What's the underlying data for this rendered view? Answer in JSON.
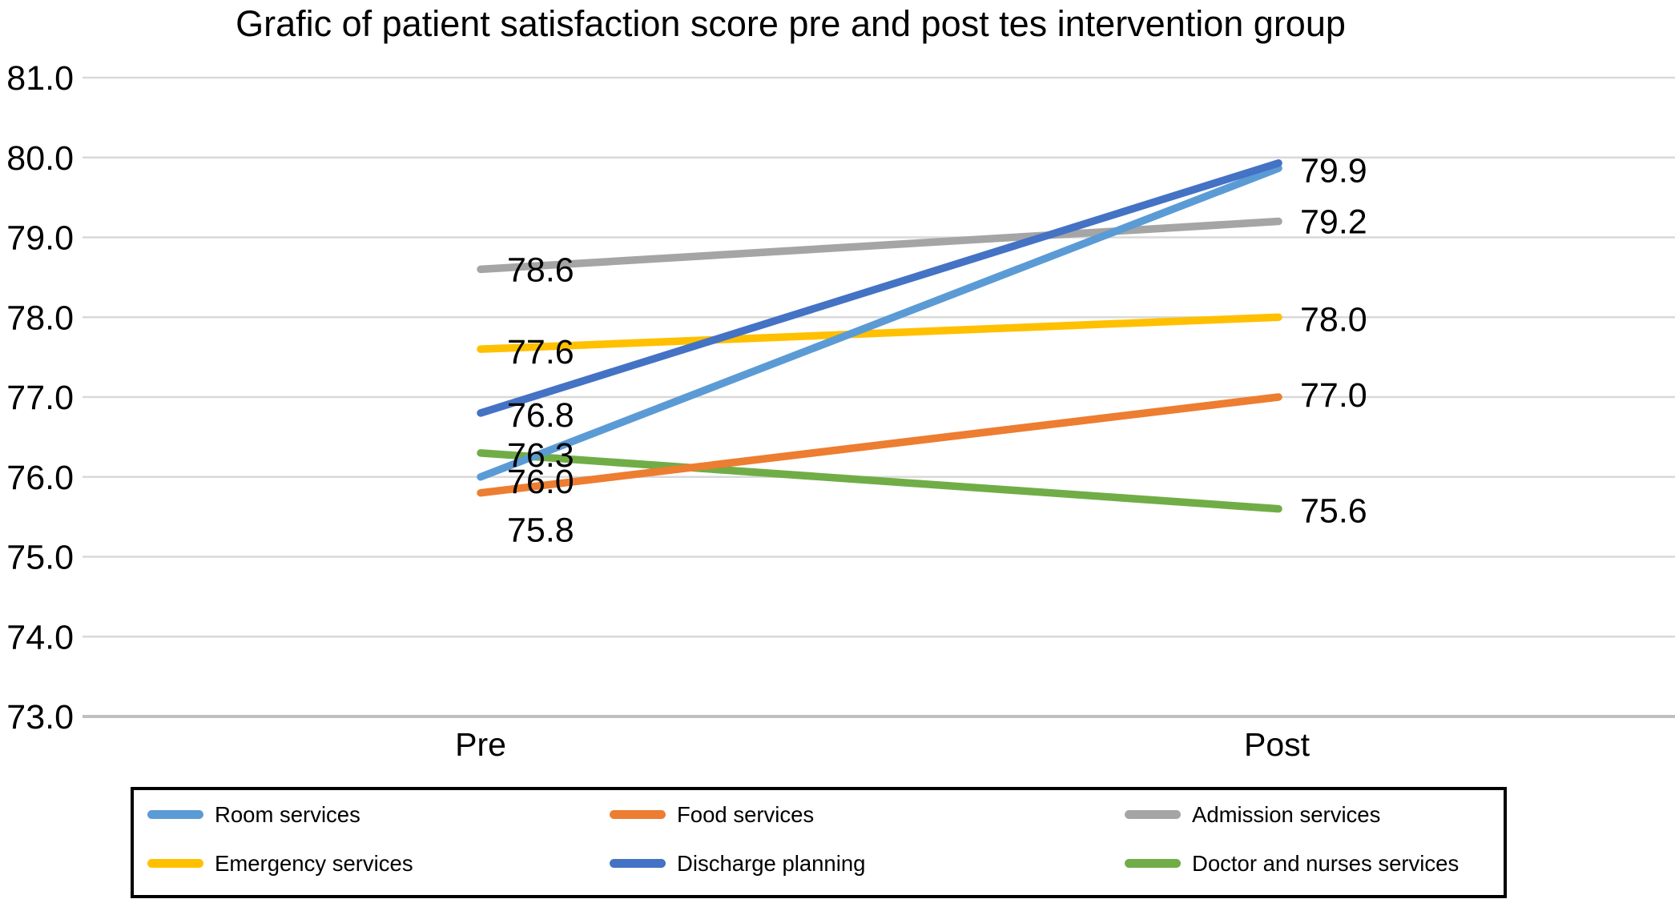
{
  "title": "Grafic of patient satisfaction score pre and post tes intervention group",
  "chart_data": {
    "type": "line",
    "title": "Grafic of patient satisfaction score pre and post tes intervention group",
    "categories": [
      "Pre",
      "Post"
    ],
    "series": [
      {
        "name": "Room services",
        "color": "#5B9BD5",
        "values": [
          76.0,
          79.9
        ]
      },
      {
        "name": "Food services",
        "color": "#ED7D31",
        "values": [
          75.8,
          77.0
        ]
      },
      {
        "name": "Admission services",
        "color": "#A5A5A5",
        "values": [
          78.6,
          79.2
        ]
      },
      {
        "name": "Emergency services",
        "color": "#FFC000",
        "values": [
          77.6,
          78.0
        ]
      },
      {
        "name": "Discharge planning",
        "color": "#4472C4",
        "values": [
          76.8,
          79.9
        ]
      },
      {
        "name": "Doctor and nurses services",
        "color": "#70AD47",
        "values": [
          76.3,
          75.6
        ]
      }
    ],
    "y_ticks": [
      "81.0",
      "80.0",
      "79.0",
      "78.0",
      "77.0",
      "76.0",
      "75.0",
      "74.0",
      "73.0"
    ],
    "ylim": [
      73,
      81
    ],
    "grid": true,
    "legend_position": "bottom",
    "data_labels_pre": [
      "78.6",
      "77.6",
      "76.8",
      "76.3",
      "76.0",
      "75.8"
    ],
    "data_labels_post": [
      "79.9",
      "79.2",
      "78.0",
      "77.0",
      "75.6"
    ],
    "gridline_color": "#D9D9D9",
    "axis_line_color": "#BFBFBF",
    "text_color": "#000000"
  }
}
